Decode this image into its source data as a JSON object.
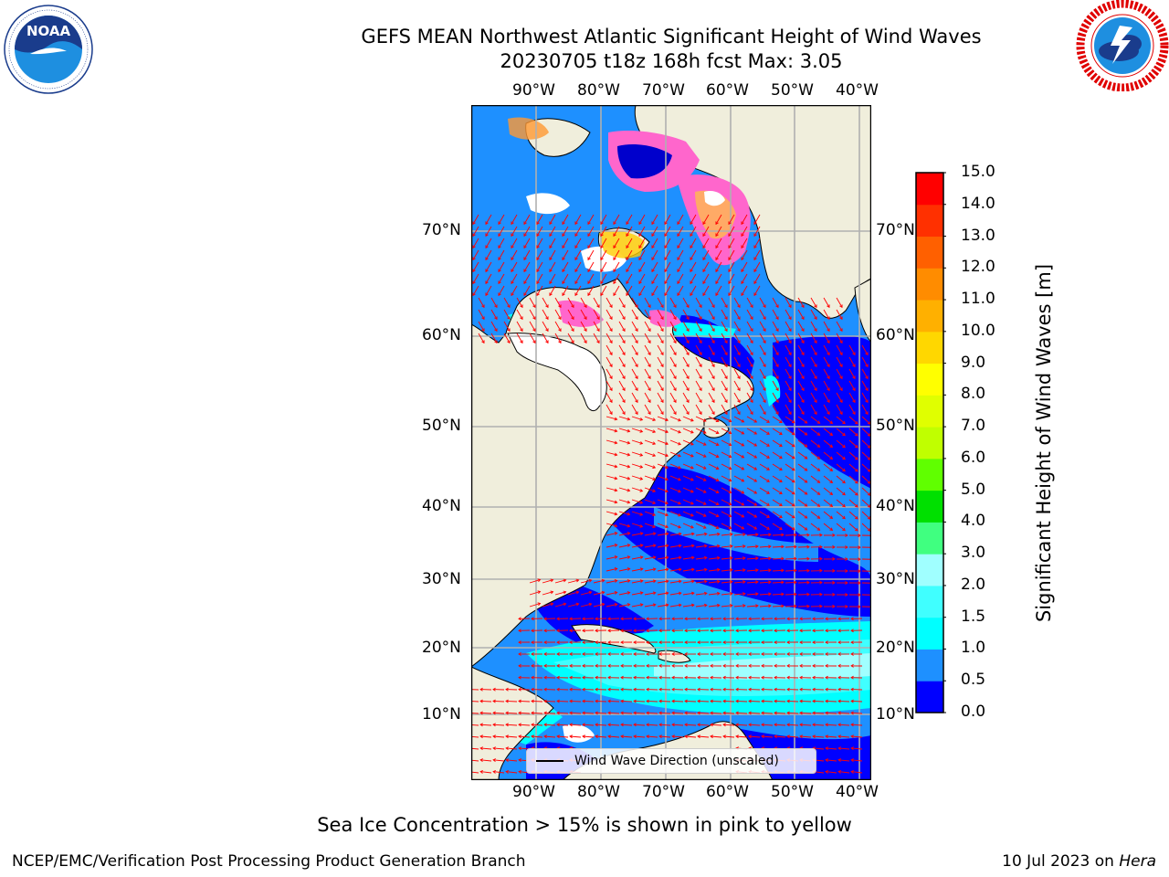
{
  "title_line1": "GEFS MEAN Northwest Atlantic Significant Height of Wind Waves",
  "title_line2": "20230705 t18z 168h fcst   Max: 3.05",
  "logos": {
    "left": {
      "icon": "noaa-logo",
      "text": "NOAA",
      "ring_text": "NATIONAL OCEANIC AND ATMOSPHERIC ADMINISTRATION · U.S. DEPARTMENT OF COMMERCE"
    },
    "right": {
      "icon": "nws-logo",
      "ring_text": "NATIONAL WEATHER SERVICE"
    }
  },
  "map": {
    "lon_labels": [
      "90°W",
      "80°W",
      "70°W",
      "60°W",
      "50°W",
      "40°W"
    ],
    "lat_labels": [
      "70°N",
      "60°N",
      "50°N",
      "40°N",
      "30°N",
      "20°N",
      "10°N"
    ],
    "land_color": "#f0eedc",
    "legend_label": "Wind Wave Direction (unscaled)",
    "arrow_color": "#ff0000"
  },
  "colorbar": {
    "label": "Significant Height of Wind Waves [m]",
    "ticks": [
      "0.0",
      "0.5",
      "1.0",
      "1.5",
      "2.0",
      "3.0",
      "4.0",
      "5.0",
      "6.0",
      "7.0",
      "8.0",
      "9.0",
      "10.0",
      "11.0",
      "12.0",
      "13.0",
      "14.0",
      "15.0"
    ],
    "colors": [
      "#0000ff",
      "#1e90ff",
      "#00ffff",
      "#40ffff",
      "#a0ffff",
      "#40ff80",
      "#00e000",
      "#60ff00",
      "#c0ff00",
      "#e0ff00",
      "#ffff00",
      "#ffd700",
      "#ffb000",
      "#ff8c00",
      "#ff6000",
      "#ff3000",
      "#ff0000"
    ]
  },
  "footnote": "Sea Ice Concentration > 15% is shown in pink to yellow",
  "footer_left": "NCEP/EMC/Verification Post Processing Product Generation Branch",
  "footer_date": "10 Jul 2023 on ",
  "footer_host": "Hera"
}
